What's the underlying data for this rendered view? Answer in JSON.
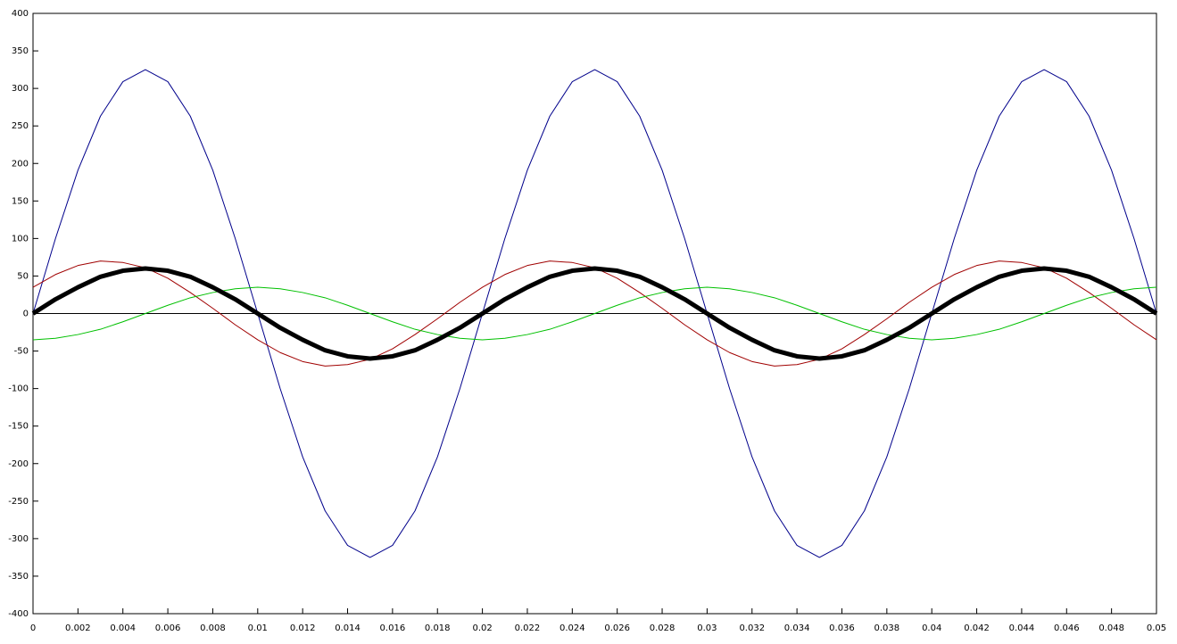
{
  "chart_data": {
    "type": "line",
    "x": [
      0,
      0.001,
      0.002,
      0.003,
      0.004,
      0.005,
      0.006,
      0.007,
      0.008,
      0.009,
      0.01,
      0.011,
      0.012,
      0.013,
      0.014,
      0.015,
      0.016,
      0.017,
      0.018,
      0.019,
      0.02,
      0.021,
      0.022,
      0.023,
      0.024,
      0.025,
      0.026,
      0.027,
      0.028,
      0.029,
      0.03,
      0.031,
      0.032,
      0.033,
      0.034,
      0.035,
      0.036,
      0.037,
      0.038,
      0.039,
      0.04,
      0.041,
      0.042,
      0.043,
      0.044,
      0.045,
      0.046,
      0.047,
      0.048,
      0.049,
      0.05
    ],
    "series": [
      {
        "color": "#00008b",
        "line_width": 1,
        "values": [
          0,
          100,
          191,
          263,
          309,
          325,
          309,
          263,
          191,
          100,
          0,
          -100,
          -191,
          -263,
          -309,
          -325,
          -309,
          -263,
          -191,
          -100,
          0,
          100,
          191,
          263,
          309,
          325,
          309,
          263,
          191,
          100,
          0,
          -100,
          -191,
          -263,
          -309,
          -325,
          -309,
          -263,
          -191,
          -100,
          0,
          100,
          191,
          263,
          309,
          325,
          309,
          263,
          191,
          100,
          0
        ]
      },
      {
        "color": "#a00000",
        "line_width": 1,
        "values": [
          35,
          52,
          64,
          70,
          68,
          61,
          47,
          28,
          7,
          -15,
          -35,
          -52,
          -64,
          -70,
          -68,
          -61,
          -47,
          -28,
          -7,
          15,
          35,
          52,
          64,
          70,
          68,
          61,
          47,
          28,
          7,
          -15,
          -35,
          -52,
          -64,
          -70,
          -68,
          -61,
          -47,
          -28,
          -7,
          15,
          35,
          52,
          64,
          70,
          68,
          61,
          47,
          28,
          7,
          -15,
          -35
        ]
      },
      {
        "color": "#00c000",
        "line_width": 1,
        "values": [
          -35,
          -33,
          -28,
          -21,
          -11,
          0,
          11,
          21,
          28,
          33,
          35,
          33,
          28,
          21,
          11,
          0,
          -11,
          -21,
          -28,
          -33,
          -35,
          -33,
          -28,
          -21,
          -11,
          0,
          11,
          21,
          28,
          33,
          35,
          33,
          28,
          21,
          11,
          0,
          -11,
          -21,
          -28,
          -33,
          -35,
          -33,
          -28,
          -21,
          -11,
          0,
          11,
          21,
          28,
          33,
          35
        ]
      },
      {
        "color": "#000000",
        "line_width": 5,
        "values": [
          0,
          19,
          35,
          49,
          57,
          60,
          57,
          49,
          35,
          19,
          0,
          -19,
          -35,
          -49,
          -57,
          -60,
          -57,
          -49,
          -35,
          -19,
          0,
          19,
          35,
          49,
          57,
          60,
          57,
          49,
          35,
          19,
          0,
          -19,
          -35,
          -49,
          -57,
          -60,
          -57,
          -49,
          -35,
          -19,
          0,
          19,
          35,
          49,
          57,
          60,
          57,
          49,
          35,
          19,
          0
        ]
      }
    ],
    "xlim": [
      0,
      0.05
    ],
    "xticks": [
      0,
      0.002,
      0.004,
      0.006,
      0.008,
      0.01,
      0.012,
      0.014,
      0.016,
      0.018,
      0.02,
      0.022,
      0.024,
      0.026,
      0.028,
      0.03,
      0.032,
      0.034,
      0.036,
      0.038,
      0.04,
      0.042,
      0.044,
      0.046,
      0.048,
      0.05
    ],
    "ylim": [
      -400,
      400
    ],
    "yticks": [
      -400,
      -350,
      -300,
      -250,
      -200,
      -150,
      -100,
      -50,
      0,
      50,
      100,
      150,
      200,
      250,
      300,
      350,
      400
    ],
    "grid": false
  }
}
